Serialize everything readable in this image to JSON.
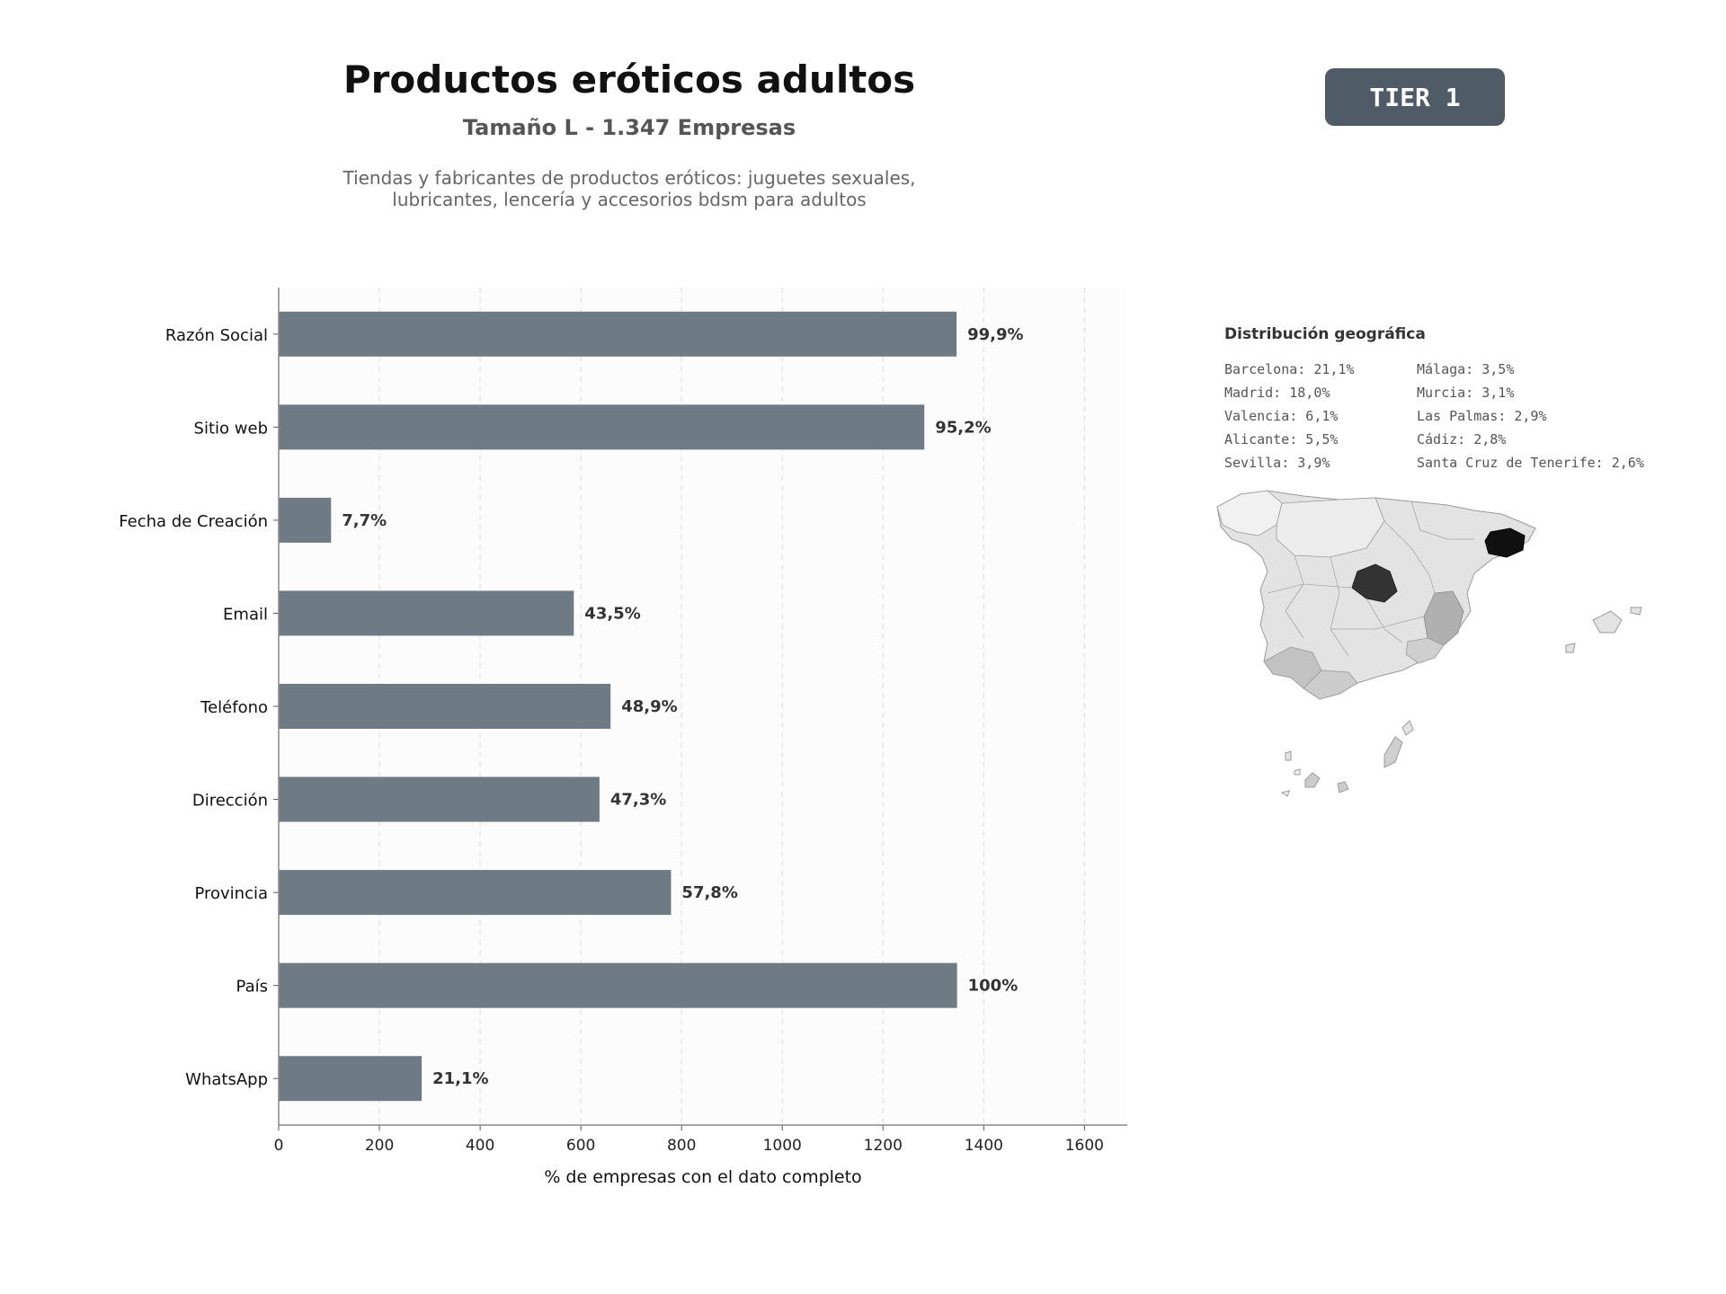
{
  "header": {
    "title": "Productos eróticos adultos",
    "subtitle": "Tamaño L - 1.347 Empresas",
    "description_line1": "Tiendas y fabricantes de productos eróticos: juguetes sexuales,",
    "description_line2": "lubricantes, lencería y accesorios bdsm para adultos",
    "tier_badge": "TIER 1"
  },
  "colors": {
    "bar": "#6e7a84",
    "badge": "#4f5b67",
    "map_dark": "#1a1a1a",
    "map_light": "#e3e3e3"
  },
  "chart_data": {
    "type": "bar",
    "orientation": "horizontal",
    "categories": [
      "Razón Social",
      "Sitio web",
      "Fecha de Creación",
      "Email",
      "Teléfono",
      "Dirección",
      "Provincia",
      "País",
      "WhatsApp"
    ],
    "values": [
      1346,
      1282,
      104,
      586,
      659,
      637,
      779,
      1347,
      284
    ],
    "value_labels": [
      "99,9%",
      "95,2%",
      "7,7%",
      "43,5%",
      "48,9%",
      "47,3%",
      "57,8%",
      "100%",
      "21,1%"
    ],
    "xlabel": "% de empresas con el dato completo",
    "ylabel": "",
    "xlim": [
      0,
      1685
    ],
    "xticks": [
      0,
      200,
      400,
      600,
      800,
      1000,
      1200,
      1400,
      1600
    ],
    "grid": "x-dashed"
  },
  "geo": {
    "title": "Distribución geográfica",
    "col1": [
      "Barcelona: 21,1%",
      "Madrid: 18,0%",
      "Valencia: 6,1%",
      "Alicante: 5,5%",
      "Sevilla: 3,9%"
    ],
    "col2": [
      "Málaga: 3,5%",
      "Murcia: 3,1%",
      "Las Palmas: 2,9%",
      "Cádiz: 2,8%",
      "Santa Cruz de Tenerife: 2,6%"
    ]
  }
}
